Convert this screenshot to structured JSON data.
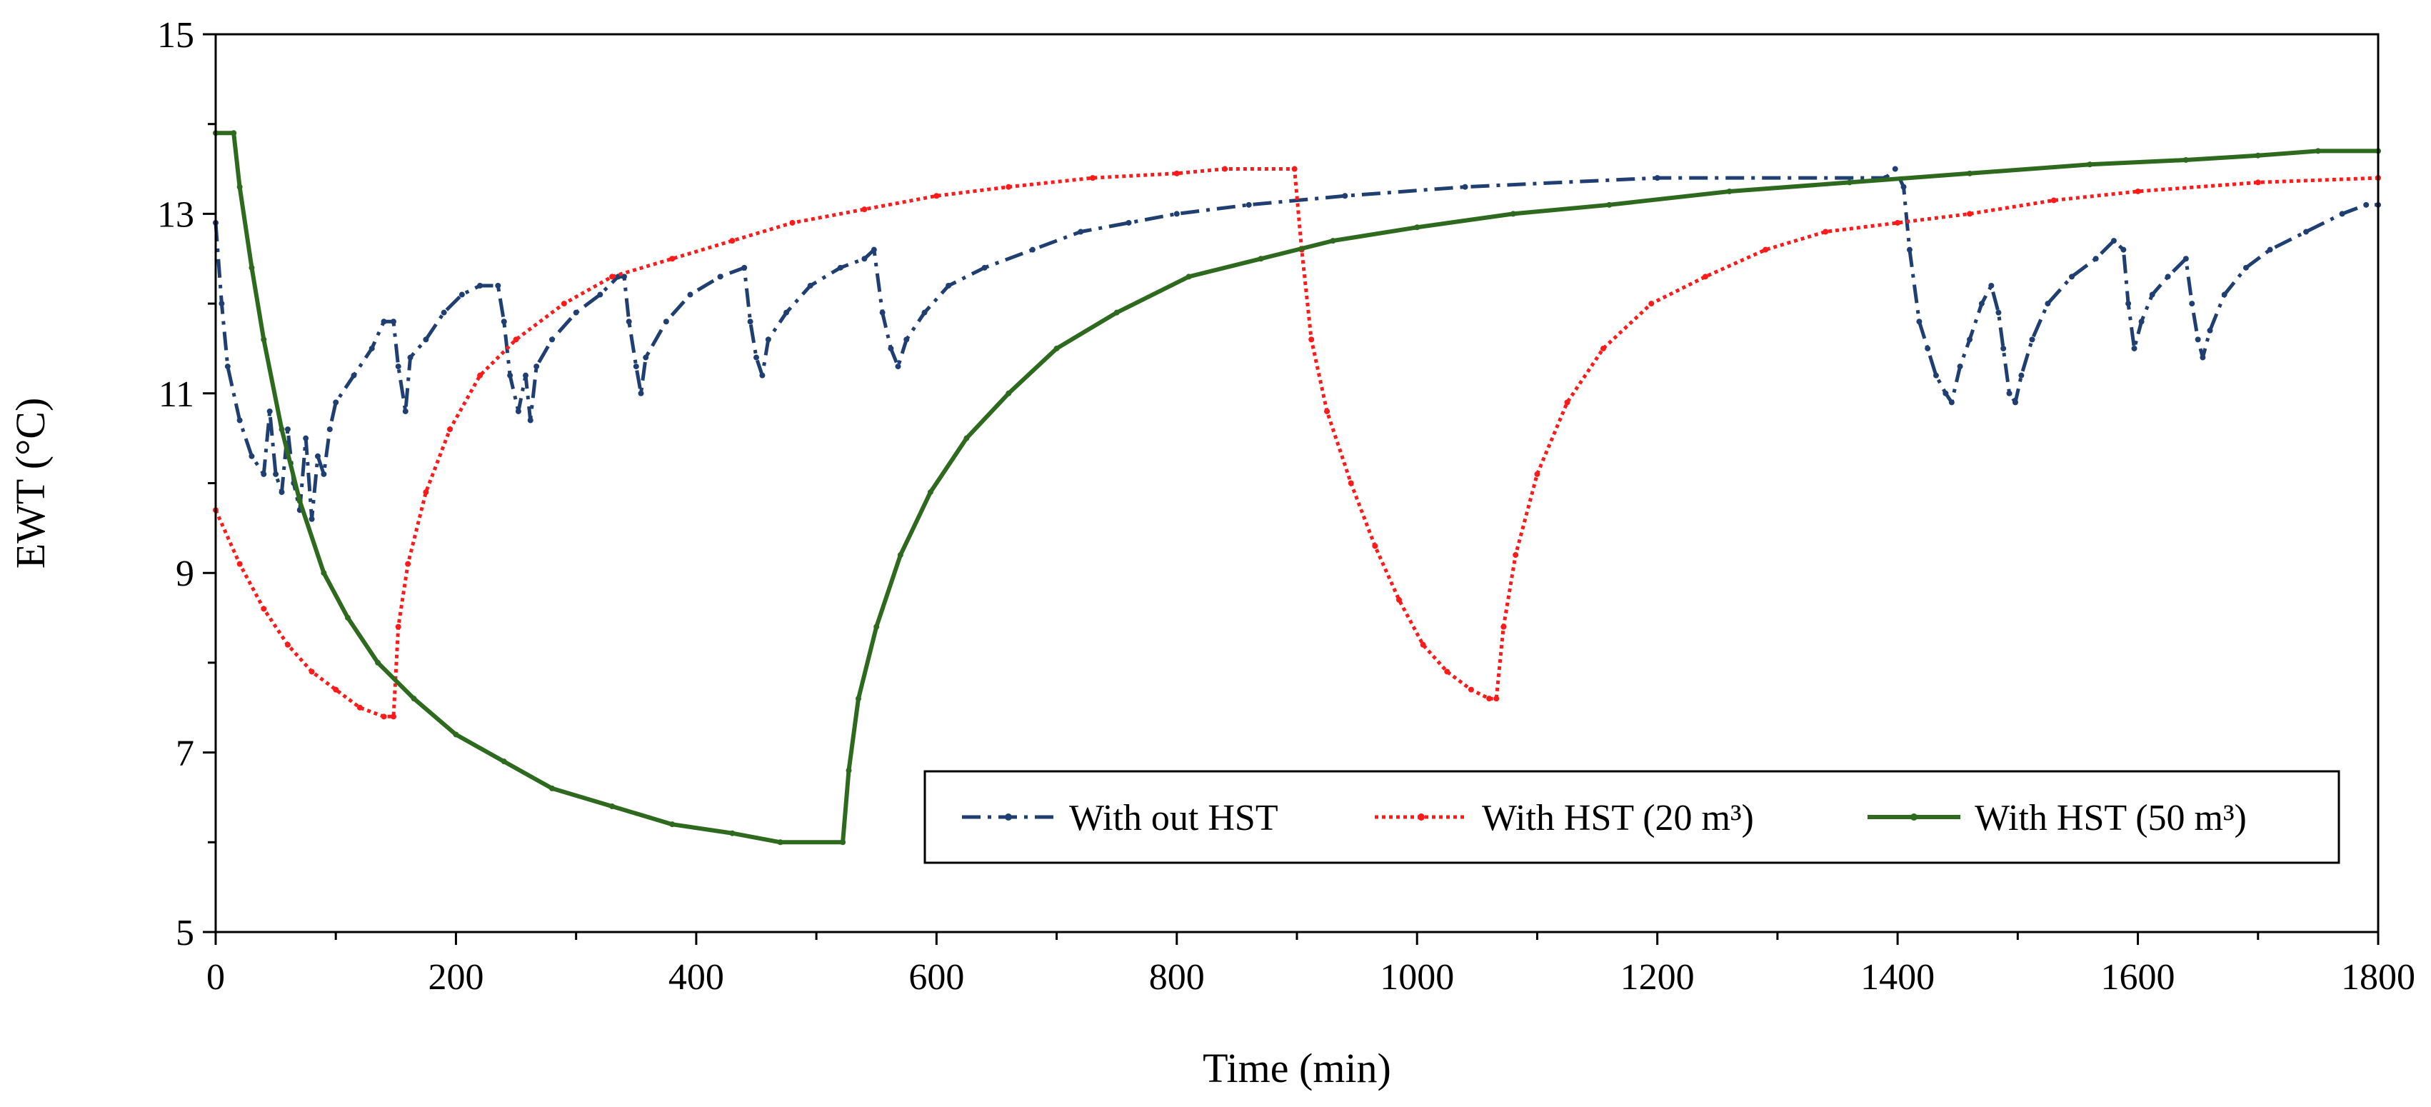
{
  "chart_data": {
    "type": "line",
    "title": "",
    "xlabel": "Time (min)",
    "ylabel": "EWT (°C)",
    "xlim": [
      0,
      1800
    ],
    "ylim": [
      5,
      15
    ],
    "x_ticks": [
      0,
      200,
      400,
      600,
      800,
      1000,
      1200,
      1400,
      1600,
      1800
    ],
    "y_ticks": [
      5,
      7,
      9,
      11,
      13,
      15
    ],
    "x_tick_labels": [
      "0",
      "200",
      "400",
      "600",
      "800",
      "1000",
      "1200",
      "1400",
      "1600",
      "1800"
    ],
    "y_tick_labels": [
      "5",
      "7",
      "9",
      "11",
      "13",
      "15"
    ],
    "grid": false,
    "legend_position": "bottom-right",
    "series": [
      {
        "name": "With out HST",
        "color": "#1f3f73",
        "style": "dash-dot",
        "points": [
          [
            0,
            12.9
          ],
          [
            5,
            12.0
          ],
          [
            10,
            11.3
          ],
          [
            20,
            10.7
          ],
          [
            30,
            10.3
          ],
          [
            40,
            10.1
          ],
          [
            45,
            10.8
          ],
          [
            50,
            10.1
          ],
          [
            55,
            9.9
          ],
          [
            60,
            10.6
          ],
          [
            65,
            10.0
          ],
          [
            70,
            9.7
          ],
          [
            75,
            10.5
          ],
          [
            80,
            9.6
          ],
          [
            85,
            10.3
          ],
          [
            90,
            10.1
          ],
          [
            95,
            10.6
          ],
          [
            100,
            10.9
          ],
          [
            115,
            11.2
          ],
          [
            130,
            11.5
          ],
          [
            140,
            11.8
          ],
          [
            148,
            11.8
          ],
          [
            152,
            11.3
          ],
          [
            158,
            10.8
          ],
          [
            162,
            11.4
          ],
          [
            175,
            11.6
          ],
          [
            190,
            11.9
          ],
          [
            205,
            12.1
          ],
          [
            220,
            12.2
          ],
          [
            235,
            12.2
          ],
          [
            240,
            11.8
          ],
          [
            245,
            11.2
          ],
          [
            252,
            10.8
          ],
          [
            258,
            11.2
          ],
          [
            262,
            10.7
          ],
          [
            267,
            11.3
          ],
          [
            280,
            11.6
          ],
          [
            300,
            11.9
          ],
          [
            320,
            12.1
          ],
          [
            335,
            12.3
          ],
          [
            340,
            12.3
          ],
          [
            344,
            11.8
          ],
          [
            350,
            11.3
          ],
          [
            354,
            11.0
          ],
          [
            358,
            11.4
          ],
          [
            375,
            11.8
          ],
          [
            395,
            12.1
          ],
          [
            420,
            12.3
          ],
          [
            440,
            12.4
          ],
          [
            445,
            11.8
          ],
          [
            450,
            11.4
          ],
          [
            455,
            11.2
          ],
          [
            460,
            11.6
          ],
          [
            475,
            11.9
          ],
          [
            495,
            12.2
          ],
          [
            520,
            12.4
          ],
          [
            540,
            12.5
          ],
          [
            548,
            12.6
          ],
          [
            555,
            11.9
          ],
          [
            562,
            11.5
          ],
          [
            568,
            11.3
          ],
          [
            575,
            11.6
          ],
          [
            590,
            11.9
          ],
          [
            610,
            12.2
          ],
          [
            640,
            12.4
          ],
          [
            680,
            12.6
          ],
          [
            720,
            12.8
          ],
          [
            760,
            12.9
          ],
          [
            800,
            13.0
          ],
          [
            860,
            13.1
          ],
          [
            940,
            13.2
          ],
          [
            1040,
            13.3
          ],
          [
            1200,
            13.4
          ],
          [
            1390,
            13.4
          ],
          [
            1398,
            13.5
          ],
          [
            1405,
            13.3
          ],
          [
            1410,
            12.6
          ],
          [
            1418,
            11.8
          ],
          [
            1425,
            11.5
          ],
          [
            1432,
            11.2
          ],
          [
            1440,
            11.0
          ],
          [
            1445,
            10.9
          ],
          [
            1452,
            11.3
          ],
          [
            1460,
            11.6
          ],
          [
            1470,
            12.0
          ],
          [
            1478,
            12.2
          ],
          [
            1484,
            11.9
          ],
          [
            1488,
            11.5
          ],
          [
            1493,
            11.0
          ],
          [
            1498,
            10.9
          ],
          [
            1503,
            11.2
          ],
          [
            1512,
            11.6
          ],
          [
            1525,
            12.0
          ],
          [
            1545,
            12.3
          ],
          [
            1565,
            12.5
          ],
          [
            1580,
            12.7
          ],
          [
            1588,
            12.6
          ],
          [
            1592,
            12.0
          ],
          [
            1597,
            11.5
          ],
          [
            1603,
            11.8
          ],
          [
            1612,
            12.1
          ],
          [
            1625,
            12.3
          ],
          [
            1640,
            12.5
          ],
          [
            1645,
            12.0
          ],
          [
            1650,
            11.6
          ],
          [
            1654,
            11.4
          ],
          [
            1660,
            11.7
          ],
          [
            1672,
            12.1
          ],
          [
            1690,
            12.4
          ],
          [
            1710,
            12.6
          ],
          [
            1740,
            12.8
          ],
          [
            1770,
            13.0
          ],
          [
            1790,
            13.1
          ],
          [
            1800,
            13.1
          ]
        ]
      },
      {
        "name": "With HST (20 m³)",
        "color": "#ff1a1a",
        "style": "dotted",
        "points": [
          [
            0,
            9.7
          ],
          [
            20,
            9.1
          ],
          [
            40,
            8.6
          ],
          [
            60,
            8.2
          ],
          [
            80,
            7.9
          ],
          [
            100,
            7.7
          ],
          [
            120,
            7.5
          ],
          [
            140,
            7.4
          ],
          [
            148,
            7.4
          ],
          [
            152,
            8.4
          ],
          [
            160,
            9.1
          ],
          [
            175,
            9.9
          ],
          [
            195,
            10.6
          ],
          [
            220,
            11.2
          ],
          [
            250,
            11.6
          ],
          [
            290,
            12.0
          ],
          [
            330,
            12.3
          ],
          [
            380,
            12.5
          ],
          [
            430,
            12.7
          ],
          [
            480,
            12.9
          ],
          [
            540,
            13.05
          ],
          [
            600,
            13.2
          ],
          [
            660,
            13.3
          ],
          [
            730,
            13.4
          ],
          [
            800,
            13.45
          ],
          [
            840,
            13.5
          ],
          [
            898,
            13.5
          ],
          [
            904,
            12.6
          ],
          [
            912,
            11.6
          ],
          [
            925,
            10.8
          ],
          [
            945,
            10.0
          ],
          [
            965,
            9.3
          ],
          [
            985,
            8.7
          ],
          [
            1005,
            8.2
          ],
          [
            1025,
            7.9
          ],
          [
            1045,
            7.7
          ],
          [
            1060,
            7.6
          ],
          [
            1066,
            7.6
          ],
          [
            1072,
            8.4
          ],
          [
            1082,
            9.2
          ],
          [
            1100,
            10.1
          ],
          [
            1125,
            10.9
          ],
          [
            1155,
            11.5
          ],
          [
            1195,
            12.0
          ],
          [
            1240,
            12.3
          ],
          [
            1290,
            12.6
          ],
          [
            1340,
            12.8
          ],
          [
            1400,
            12.9
          ],
          [
            1460,
            13.0
          ],
          [
            1530,
            13.15
          ],
          [
            1600,
            13.25
          ],
          [
            1700,
            13.35
          ],
          [
            1800,
            13.4
          ]
        ]
      },
      {
        "name": "With HST (50 m³)",
        "color": "#2d6a1e",
        "style": "solid",
        "points": [
          [
            0,
            13.9
          ],
          [
            15,
            13.9
          ],
          [
            20,
            13.3
          ],
          [
            30,
            12.4
          ],
          [
            40,
            11.6
          ],
          [
            55,
            10.6
          ],
          [
            70,
            9.8
          ],
          [
            90,
            9.0
          ],
          [
            110,
            8.5
          ],
          [
            135,
            8.0
          ],
          [
            165,
            7.6
          ],
          [
            200,
            7.2
          ],
          [
            240,
            6.9
          ],
          [
            280,
            6.6
          ],
          [
            330,
            6.4
          ],
          [
            380,
            6.2
          ],
          [
            430,
            6.1
          ],
          [
            470,
            6.0
          ],
          [
            522,
            6.0
          ],
          [
            527,
            6.8
          ],
          [
            535,
            7.6
          ],
          [
            550,
            8.4
          ],
          [
            570,
            9.2
          ],
          [
            595,
            9.9
          ],
          [
            625,
            10.5
          ],
          [
            660,
            11.0
          ],
          [
            700,
            11.5
          ],
          [
            750,
            11.9
          ],
          [
            810,
            12.3
          ],
          [
            870,
            12.5
          ],
          [
            930,
            12.7
          ],
          [
            1000,
            12.85
          ],
          [
            1080,
            13.0
          ],
          [
            1160,
            13.1
          ],
          [
            1260,
            13.25
          ],
          [
            1360,
            13.35
          ],
          [
            1460,
            13.45
          ],
          [
            1560,
            13.55
          ],
          [
            1640,
            13.6
          ],
          [
            1700,
            13.65
          ],
          [
            1750,
            13.7
          ],
          [
            1800,
            13.7
          ]
        ]
      }
    ]
  }
}
